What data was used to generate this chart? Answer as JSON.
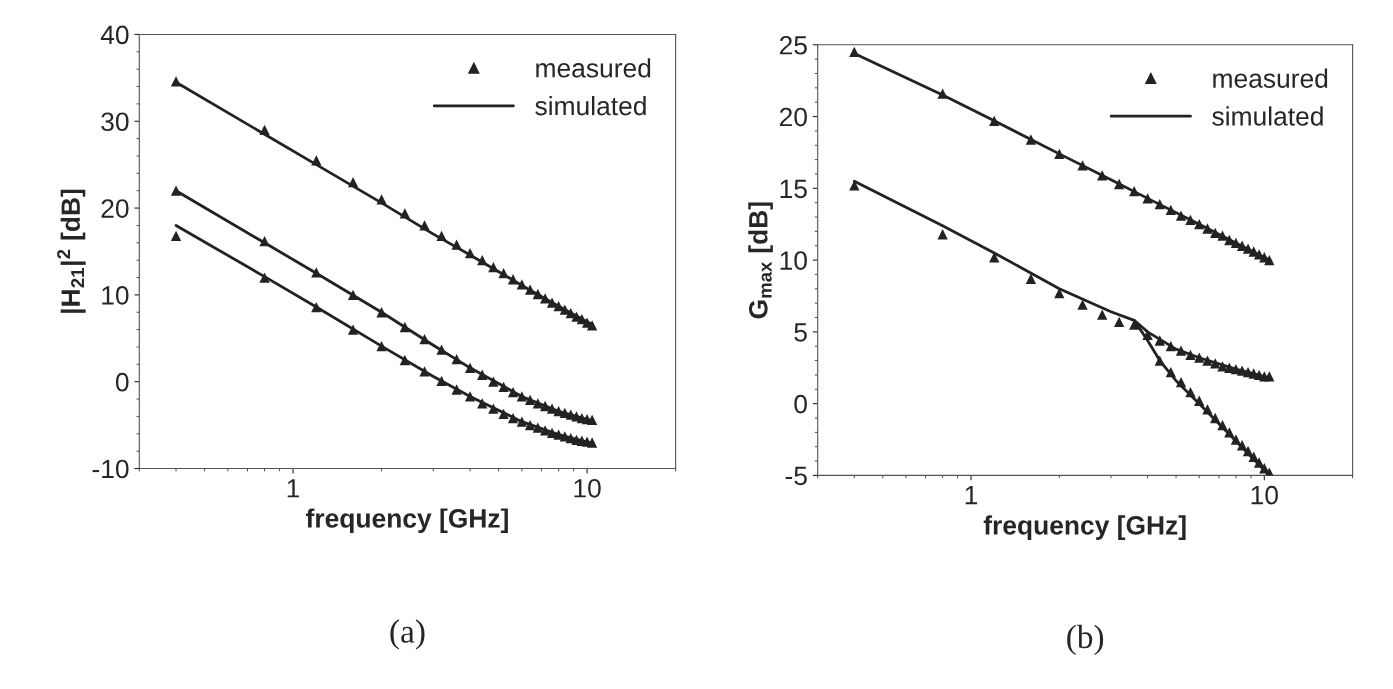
{
  "chart_data": [
    {
      "type": "scatter",
      "title": "(a)",
      "xlabel": "frequency [GHz]",
      "ylabel": "|H$_{21}$|$^{2}$ [dB]",
      "log": "x",
      "xlim": [
        0.3,
        20
      ],
      "xticks": [
        1,
        10
      ],
      "ylim": [
        -10,
        40
      ],
      "yticks": [
        -10,
        0,
        10,
        20,
        30,
        40
      ],
      "grid": false,
      "legend": "top right",
      "series": [
        {
          "name": "measured",
          "marker": "triangle",
          "color": "#222222",
          "x": [
            0.4,
            0.8,
            1.2,
            1.6,
            2.0,
            2.4,
            2.8,
            3.2,
            3.6,
            4.0,
            4.4,
            4.8,
            5.2,
            5.6,
            6.0,
            6.4,
            6.8,
            7.2,
            7.6,
            8.0,
            8.4,
            8.8,
            9.2,
            9.6,
            10.0,
            10.4
          ],
          "values": [
            34.6,
            29,
            25.5,
            23,
            21,
            19.4,
            18,
            16.8,
            15.8,
            14.8,
            14,
            13.2,
            12.5,
            11.8,
            11.2,
            10.6,
            10.1,
            9.6,
            9.1,
            8.7,
            8.3,
            7.9,
            7.5,
            7.2,
            6.8,
            6.5
          ]
        },
        {
          "marker": "triangle",
          "color": "#222222",
          "x": [
            0.4,
            0.8,
            1.2,
            1.6,
            2.0,
            2.4,
            2.8,
            3.2,
            3.6,
            4.0,
            4.4,
            4.8,
            5.2,
            5.6,
            6.0,
            6.4,
            6.8,
            7.2,
            7.6,
            8.0,
            8.4,
            8.8,
            9.2,
            9.6,
            10.0,
            10.4
          ],
          "values": [
            22,
            16.2,
            12.6,
            10,
            8,
            6.3,
            4.9,
            3.7,
            2.6,
            1.6,
            0.8,
            0,
            -0.6,
            -1.2,
            -1.7,
            -2.1,
            -2.5,
            -2.8,
            -3.1,
            -3.4,
            -3.6,
            -3.8,
            -4.0,
            -4.2,
            -4.3,
            -4.4
          ]
        },
        {
          "marker": "triangle",
          "color": "#222222",
          "x": [
            0.4,
            0.8,
            1.2,
            1.6,
            2.0,
            2.4,
            2.8,
            3.2,
            3.6,
            4.0,
            4.4,
            4.8,
            5.2,
            5.6,
            6.0,
            6.4,
            6.8,
            7.2,
            7.6,
            8.0,
            8.4,
            8.8,
            9.2,
            9.6,
            10.0,
            10.4
          ],
          "values": [
            16.8,
            12,
            8.6,
            6,
            4.1,
            2.5,
            1.2,
            0.1,
            -0.9,
            -1.7,
            -2.5,
            -3.1,
            -3.7,
            -4.2,
            -4.6,
            -5.0,
            -5.3,
            -5.6,
            -5.9,
            -6.1,
            -6.3,
            -6.5,
            -6.7,
            -6.8,
            -6.9,
            -7.0
          ]
        },
        {
          "name": "simulated",
          "type": "line",
          "color": "#222222",
          "x": [
            0.4,
            0.8,
            1.2,
            2.0,
            3.0,
            4.0,
            6.0,
            8.0,
            10.4
          ],
          "values": [
            34.5,
            28.5,
            25,
            20.6,
            17,
            14.6,
            11.1,
            8.7,
            6.6
          ]
        },
        {
          "type": "line",
          "color": "#222222",
          "x": [
            0.4,
            0.8,
            1.2,
            2.0,
            3.0,
            4.0,
            6.0,
            8.0,
            10.4
          ],
          "values": [
            22,
            16,
            12.5,
            8,
            4.2,
            1.6,
            -1.7,
            -3.4,
            -4.5
          ]
        },
        {
          "type": "line",
          "color": "#222222",
          "x": [
            0.4,
            0.8,
            1.2,
            2.0,
            3.0,
            4.0,
            6.0,
            8.0,
            10.4
          ],
          "values": [
            18,
            12.1,
            8.6,
            4.1,
            0.6,
            -1.7,
            -4.6,
            -6.1,
            -7.1
          ]
        }
      ]
    },
    {
      "type": "scatter",
      "title": "(b)",
      "xlabel": "frequency [GHz]",
      "ylabel": "G$_{max}$ [dB]",
      "log": "x",
      "xlim": [
        0.3,
        20
      ],
      "xticks": [
        1,
        10
      ],
      "ylim": [
        -5,
        25
      ],
      "yticks": [
        -5,
        0,
        5,
        10,
        15,
        20,
        25
      ],
      "grid": false,
      "legend": "top right",
      "series": [
        {
          "name": "measured",
          "marker": "triangle",
          "color": "#222222",
          "x": [
            0.4,
            0.8,
            1.2,
            1.6,
            2.0,
            2.4,
            2.8,
            3.2,
            3.6,
            4.0,
            4.4,
            4.8,
            5.2,
            5.6,
            6.0,
            6.4,
            6.8,
            7.2,
            7.6,
            8.0,
            8.4,
            8.8,
            9.2,
            9.6,
            10.0,
            10.4
          ],
          "values": [
            24.5,
            21.6,
            19.7,
            18.4,
            17.4,
            16.6,
            15.9,
            15.3,
            14.8,
            14.3,
            13.9,
            13.5,
            13.1,
            12.8,
            12.5,
            12.2,
            11.9,
            11.7,
            11.4,
            11.2,
            11.0,
            10.8,
            10.6,
            10.4,
            10.2,
            10.0
          ]
        },
        {
          "marker": "triangle",
          "color": "#222222",
          "x": [
            0.4,
            0.8,
            1.2,
            1.6,
            2.0,
            2.4,
            2.8,
            3.2,
            3.6,
            4.0,
            4.4,
            4.8,
            5.2,
            5.6,
            6.0,
            6.4,
            6.8,
            7.2,
            7.6,
            8.0,
            8.4,
            8.8,
            9.2,
            9.6,
            10.0,
            10.4
          ],
          "values": [
            15.2,
            11.8,
            10.2,
            8.7,
            7.7,
            6.9,
            6.2,
            5.7,
            5.5,
            4.8,
            4.4,
            4.0,
            3.7,
            3.4,
            3.2,
            3.0,
            2.8,
            2.6,
            2.5,
            2.4,
            2.3,
            2.2,
            2.1,
            2.0,
            1.9,
            1.9
          ]
        },
        {
          "marker": "triangle",
          "color": "#222222",
          "x": [
            4.4,
            4.8,
            5.2,
            5.6,
            6.0,
            6.4,
            6.8,
            7.2,
            7.6,
            8.0,
            8.4,
            8.8,
            9.2,
            9.6,
            10.0,
            10.4
          ],
          "values": [
            3.0,
            2.2,
            1.5,
            0.8,
            0.2,
            -0.4,
            -1.0,
            -1.5,
            -2.0,
            -2.5,
            -2.9,
            -3.3,
            -3.7,
            -4.1,
            -4.5,
            -4.8
          ]
        },
        {
          "name": "simulated",
          "type": "line",
          "color": "#222222",
          "x": [
            0.4,
            0.8,
            1.2,
            2.0,
            3.0,
            4.0,
            6.0,
            8.0,
            10.4
          ],
          "values": [
            24.4,
            21.5,
            19.7,
            17.4,
            15.6,
            14.3,
            12.5,
            11.2,
            10.0
          ]
        },
        {
          "type": "line",
          "color": "#222222",
          "x": [
            0.4,
            0.8,
            1.2,
            2.0,
            3.0,
            3.6,
            4.0,
            5.0,
            6.0,
            8.0,
            10.4
          ],
          "values": [
            15.5,
            12.4,
            10.5,
            8,
            6.4,
            5.8,
            5.0,
            3.8,
            3.2,
            2.4,
            1.8
          ]
        },
        {
          "type": "line",
          "color": "#222222",
          "x": [
            3.6,
            4.0,
            4.4,
            5.0,
            6.0,
            8.0,
            10.4
          ],
          "values": [
            5.8,
            4.4,
            3.0,
            1.6,
            0.0,
            -2.6,
            -5.0
          ]
        }
      ]
    }
  ]
}
